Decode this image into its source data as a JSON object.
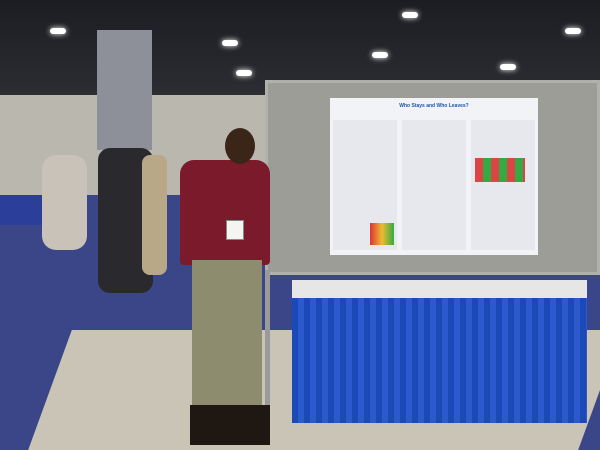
{
  "scene": "poster-session",
  "poster": {
    "title": "Who Stays and Who Leaves?"
  },
  "colors": {
    "carpet": "#3a4688",
    "table_skirt": "#1c49b8",
    "shirt": "#7a1a2a"
  }
}
